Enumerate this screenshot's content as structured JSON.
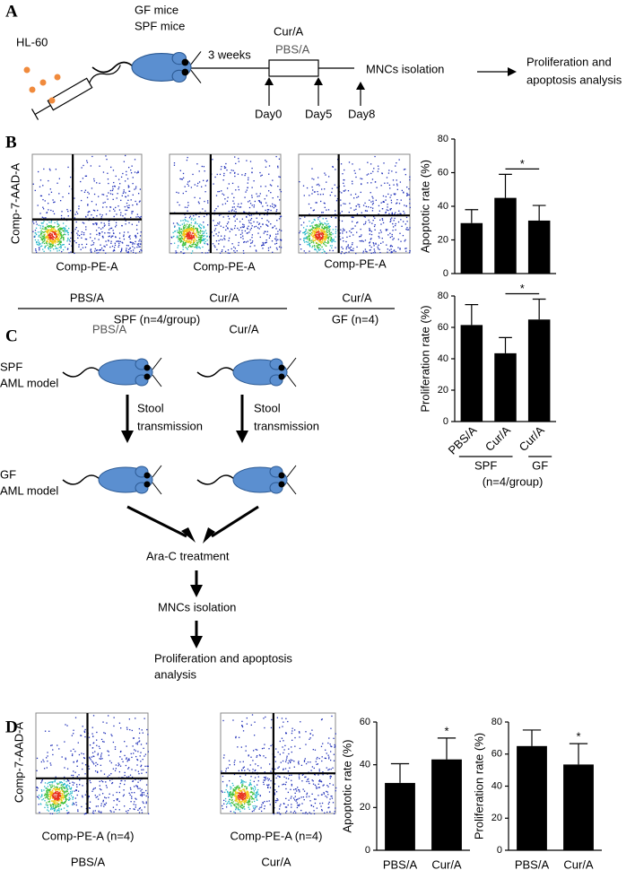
{
  "panel_a": {
    "letter": "A",
    "cells": "HL-60",
    "mice": [
      "GF mice",
      "SPF mice"
    ],
    "duration": "3 weeks",
    "treatments": [
      "Cur/A",
      "PBS/A"
    ],
    "days": [
      "Day0",
      "Day5",
      "Day8"
    ],
    "step": "MNCs isolation",
    "outcome": [
      "Proliferation and",
      "apoptosis analysis"
    ]
  },
  "panel_b": {
    "letter": "B",
    "y_axis": "Comp-7-AAD-A",
    "x_axis": [
      "Comp-PE-A",
      "Comp-PE-A",
      "Comp-PE-A"
    ],
    "groups": [
      "PBS/A",
      "Cur/A",
      "Cur/A"
    ],
    "cohorts": [
      "SPF (n=4/group)",
      "GF (n=4)"
    ]
  },
  "panel_c": {
    "letter": "C",
    "treatments": [
      "PBS/A",
      "Cur/A"
    ],
    "donor": [
      "SPF",
      "AML model"
    ],
    "transfer": [
      "Stool",
      "transmission"
    ],
    "recipient": [
      "GF",
      "AML model"
    ],
    "steps": [
      "Ara-C treatment",
      "MNCs isolation"
    ],
    "outcome": [
      "Proliferation and apoptosis",
      "analysis"
    ]
  },
  "panel_d": {
    "letter": "D",
    "y_axis": "Comp-7-AAD-A",
    "x_axis": [
      "Comp-PE-A (n=4)",
      "Comp-PE-A (n=4)"
    ],
    "groups": [
      "PBS/A",
      "Cur/A"
    ]
  },
  "chart_data": [
    {
      "type": "bar",
      "y_label": "Apoptotic rate (%)",
      "values": [
        30,
        45,
        31.5
      ],
      "errors": [
        8,
        14,
        9
      ],
      "color": "#000000",
      "ylim": [
        0,
        80
      ],
      "yticks": [
        0,
        20,
        40,
        60,
        80
      ],
      "annotation": "*"
    },
    {
      "type": "bar",
      "y_label": "Proliferation rate (%)",
      "categories": [
        "PBS/A",
        "Cur/A",
        "Cur/A"
      ],
      "values": [
        61.5,
        43.5,
        65
      ],
      "errors": [
        13,
        10,
        13
      ],
      "color": "#000000",
      "ylim": [
        0,
        80
      ],
      "yticks": [
        0,
        20,
        40,
        60,
        80
      ],
      "annotation": "*",
      "groups": [
        "SPF",
        "GF"
      ],
      "note": "(n=4/group)"
    },
    {
      "type": "bar",
      "y_label": "Apoptotic rate (%)",
      "categories": [
        "PBS/A",
        "Cur/A"
      ],
      "values": [
        31.5,
        42.5
      ],
      "errors": [
        9,
        10
      ],
      "color": "#000000",
      "ylim": [
        0,
        60
      ],
      "yticks": [
        0,
        20,
        40,
        60
      ],
      "annotation": "*",
      "note": "(n=4/group)"
    },
    {
      "type": "bar",
      "y_label": "Proliferation rate (%)",
      "categories": [
        "PBS/A",
        "Cur/A"
      ],
      "values": [
        65,
        53.5
      ],
      "errors": [
        10,
        13
      ],
      "color": "#000000",
      "ylim": [
        0,
        80
      ],
      "yticks": [
        0,
        20,
        40,
        60,
        80
      ],
      "annotation": "*",
      "note": "(n=4/group)"
    }
  ]
}
